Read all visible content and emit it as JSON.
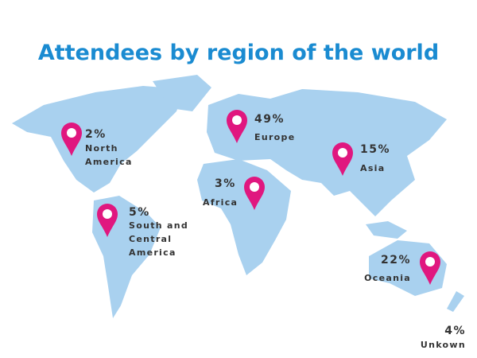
{
  "title": "Attendees by region of the world",
  "regions": [
    {
      "percent": "2%",
      "name": [
        "North",
        "America"
      ]
    },
    {
      "percent": "49%",
      "name": [
        "Europe"
      ]
    },
    {
      "percent": "15%",
      "name": [
        "Asia"
      ]
    },
    {
      "percent": "3%",
      "name": [
        "Africa"
      ]
    },
    {
      "percent": "5%",
      "name": [
        "South and",
        "Central",
        "America"
      ]
    },
    {
      "percent": "22%",
      "name": [
        "Oceania"
      ]
    },
    {
      "percent": "4%",
      "name": [
        "Unkown"
      ]
    }
  ]
}
